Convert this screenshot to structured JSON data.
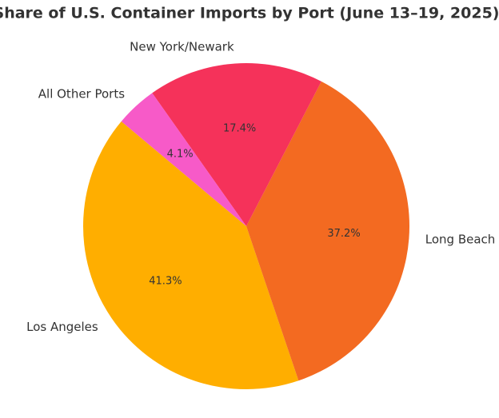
{
  "chart_data": {
    "type": "pie",
    "title": "Share of U.S. Container Imports by Port (June 13–19, 2025)",
    "categories": [
      "Los Angeles",
      "Long Beach",
      "New York/Newark",
      "All Other Ports"
    ],
    "values": [
      41.3,
      37.2,
      17.4,
      4.1
    ],
    "value_labels": [
      "41.3%",
      "37.2%",
      "17.4%",
      "4.1%"
    ],
    "colors": [
      "#ffae00",
      "#f36a21",
      "#f5325a",
      "#f75ac8"
    ]
  }
}
